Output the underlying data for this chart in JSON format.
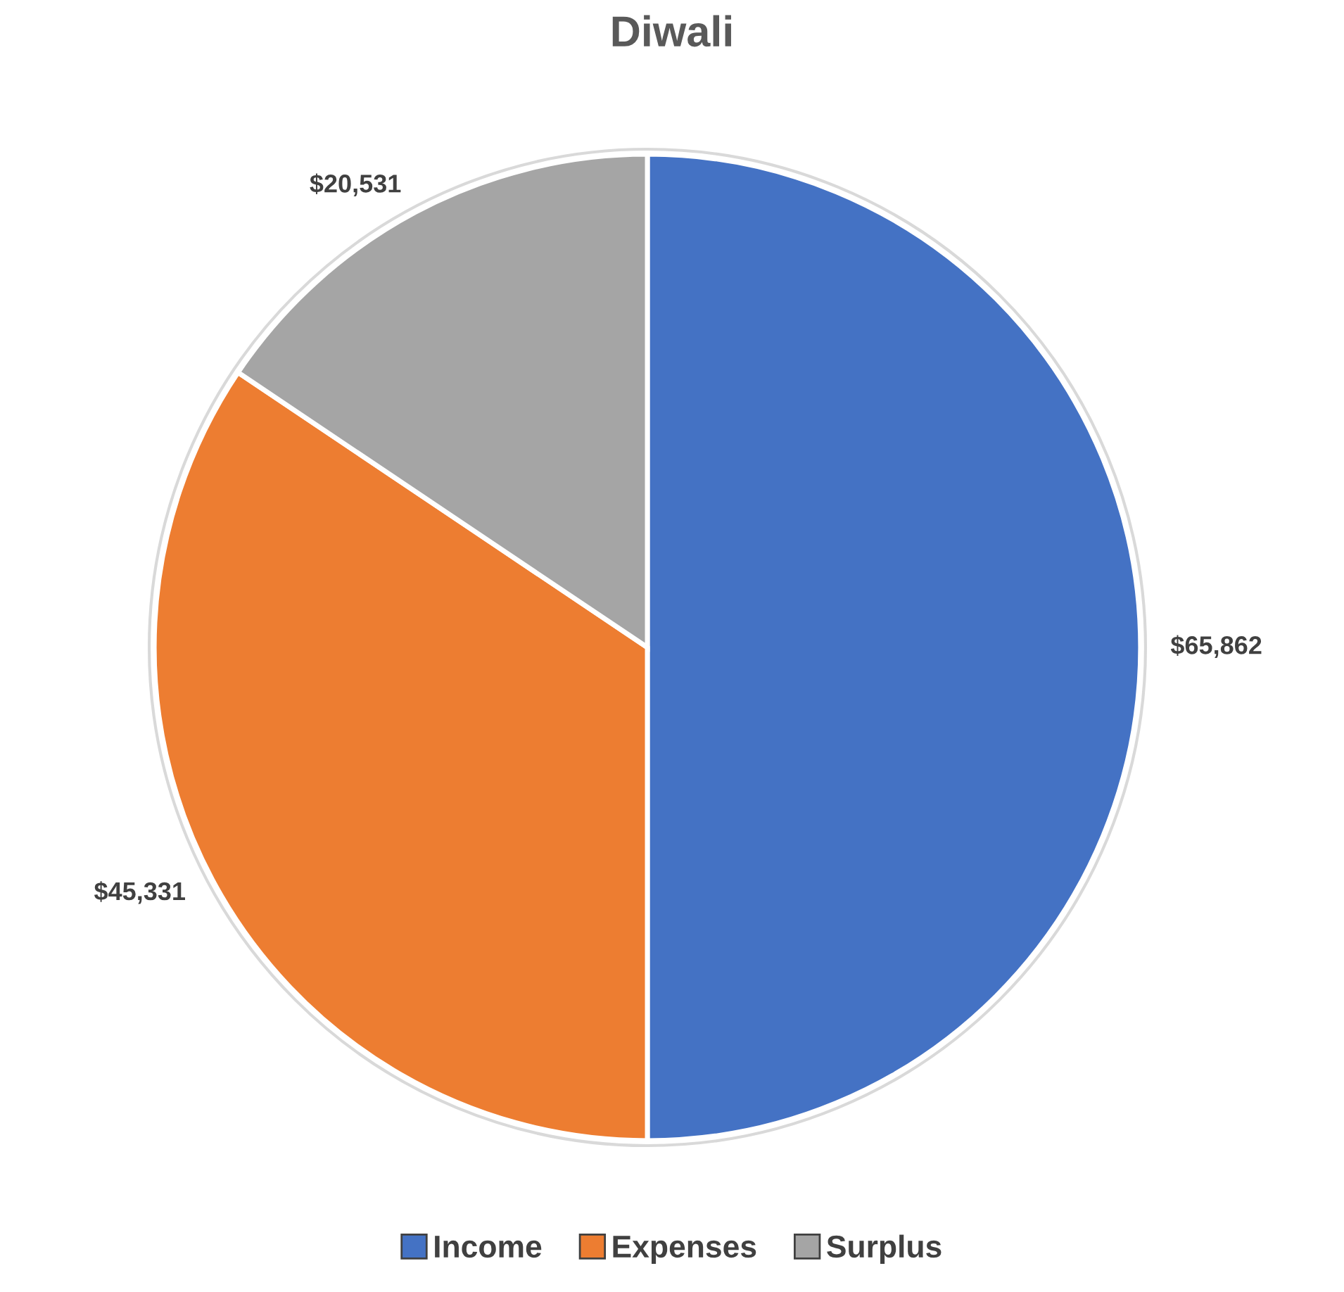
{
  "chart_data": {
    "type": "pie",
    "title": "Diwali",
    "categories": [
      "Income",
      "Expenses",
      "Surplus"
    ],
    "values": [
      65862,
      45331,
      20531
    ],
    "colors": [
      "#4472c4",
      "#ed7d31",
      "#a5a5a5"
    ],
    "value_labels": [
      "$65,862",
      "$45,331",
      "$20,531"
    ],
    "legend": "bottom"
  }
}
